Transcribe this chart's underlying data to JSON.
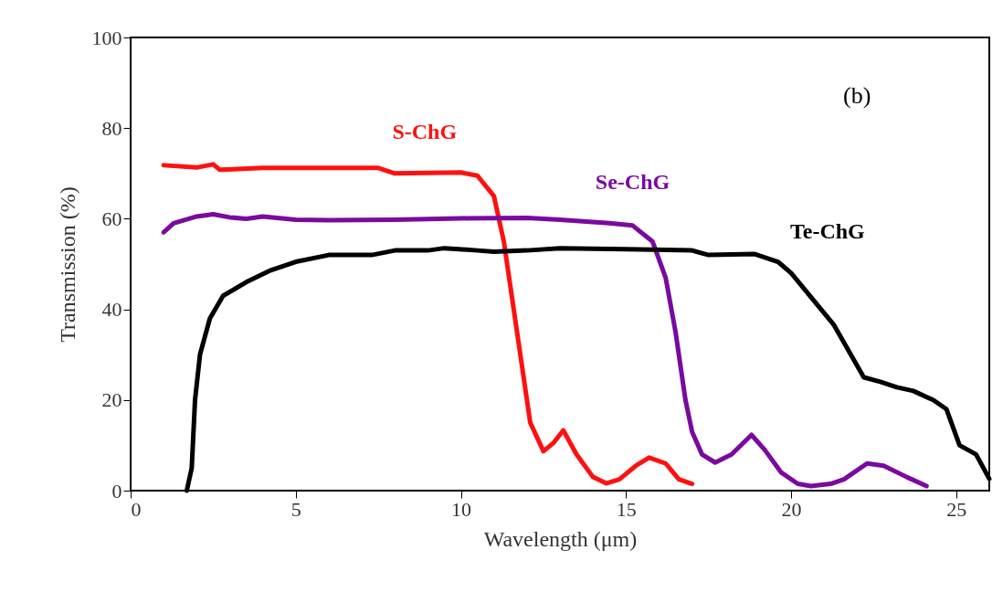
{
  "chart_data": {
    "type": "line",
    "xlabel": "Wavelength (μm)",
    "ylabel": "Transmission (%)",
    "xlim": [
      0,
      26
    ],
    "xticks": [
      0,
      5,
      10,
      15,
      20,
      25
    ],
    "ylim": [
      0,
      100
    ],
    "yticks": [
      0,
      20,
      40,
      60,
      80,
      100
    ],
    "grid": false,
    "marker": "none",
    "line_style": "solid",
    "annotations": [
      "(b)"
    ],
    "series": [
      {
        "name": "S-ChG",
        "color": "#ff1010",
        "x": [
          1.0,
          2.0,
          2.5,
          2.7,
          4,
          7.5,
          8,
          10,
          10.5,
          11,
          11.3,
          11.5,
          11.8,
          12.1,
          12.5,
          12.8,
          13.1,
          13.5,
          14.0,
          14.4,
          14.8,
          15.3,
          15.7,
          16.2,
          16.6,
          17.0
        ],
        "values": [
          71.8,
          71.3,
          72,
          70.8,
          71.2,
          71.2,
          70,
          70.2,
          69.5,
          65,
          55,
          45,
          30,
          15,
          8.7,
          10.5,
          13.3,
          8,
          3,
          1.6,
          2.5,
          5.5,
          7.3,
          6,
          2.5,
          1.5
        ]
      },
      {
        "name": "Se-ChG",
        "color": "#7a0a9e",
        "x": [
          1,
          1.3,
          2,
          2.5,
          3,
          3.5,
          4,
          5,
          6,
          8,
          10,
          12,
          13,
          14.5,
          15.2,
          15.8,
          16.2,
          16.5,
          16.8,
          17.0,
          17.3,
          17.7,
          18.2,
          18.8,
          19.2,
          19.7,
          20.2,
          20.6,
          21.2,
          21.6,
          22.3,
          22.8,
          23.5,
          24.1
        ],
        "values": [
          57,
          59,
          60.5,
          61,
          60.3,
          60,
          60.5,
          59.8,
          59.7,
          59.8,
          60.1,
          60.2,
          59.8,
          59,
          58.5,
          55,
          47,
          35,
          20,
          13,
          8,
          6.2,
          8,
          12.3,
          9,
          4,
          1.5,
          1,
          1.5,
          2.5,
          6,
          5.5,
          3,
          1
        ]
      },
      {
        "name": "Te-ChG",
        "color": "#000000",
        "x": [
          1.7,
          1.85,
          1.95,
          2.1,
          2.4,
          2.8,
          3.5,
          4.2,
          5,
          6,
          7.3,
          8,
          9,
          9.5,
          10.5,
          11,
          12,
          13,
          15,
          17,
          17.5,
          18.9,
          19.6,
          20,
          21.3,
          22.2,
          22.7,
          23.2,
          23.7,
          24.3,
          24.7,
          25.1,
          25.6,
          26.0
        ],
        "values": [
          0,
          5,
          20,
          30,
          38,
          43,
          46,
          48.5,
          50.5,
          52,
          52,
          53,
          53,
          53.5,
          53,
          52.7,
          53,
          53.5,
          53.3,
          53,
          52,
          52.2,
          50.5,
          48,
          36.5,
          25,
          24,
          22.8,
          22,
          20,
          18,
          10,
          8,
          2.6
        ]
      }
    ]
  }
}
